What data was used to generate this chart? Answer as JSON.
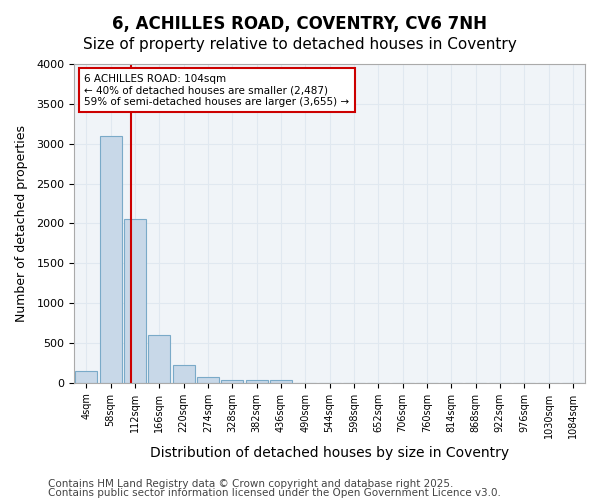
{
  "title1": "6, ACHILLES ROAD, COVENTRY, CV6 7NH",
  "title2": "Size of property relative to detached houses in Coventry",
  "xlabel": "Distribution of detached houses by size in Coventry",
  "ylabel": "Number of detached properties",
  "footer1": "Contains HM Land Registry data © Crown copyright and database right 2025.",
  "footer2": "Contains public sector information licensed under the Open Government Licence v3.0.",
  "bins": [
    "4sqm",
    "58sqm",
    "112sqm",
    "166sqm",
    "220sqm",
    "274sqm",
    "328sqm",
    "382sqm",
    "436sqm",
    "490sqm",
    "544sqm",
    "598sqm",
    "652sqm",
    "706sqm",
    "760sqm",
    "814sqm",
    "868sqm",
    "922sqm",
    "976sqm",
    "1030sqm",
    "1084sqm"
  ],
  "values": [
    150,
    3100,
    2050,
    600,
    220,
    75,
    40,
    40,
    40,
    0,
    0,
    0,
    0,
    0,
    0,
    0,
    0,
    0,
    0,
    0,
    0
  ],
  "bar_color": "#c8d8e8",
  "bar_edge_color": "#7aaac8",
  "red_line_x": 1.85,
  "annotation_text": "6 ACHILLES ROAD: 104sqm\n← 40% of detached houses are smaller (2,487)\n59% of semi-detached houses are larger (3,655) →",
  "annotation_box_color": "#ffffff",
  "annotation_box_edge": "#cc0000",
  "ylim": [
    0,
    4000
  ],
  "yticks": [
    0,
    500,
    1000,
    1500,
    2000,
    2500,
    3000,
    3500,
    4000
  ],
  "grid_color": "#e0e8f0",
  "bg_color": "#f0f4f8",
  "title1_fontsize": 12,
  "title2_fontsize": 11,
  "xlabel_fontsize": 10,
  "ylabel_fontsize": 9,
  "footer_fontsize": 7.5
}
